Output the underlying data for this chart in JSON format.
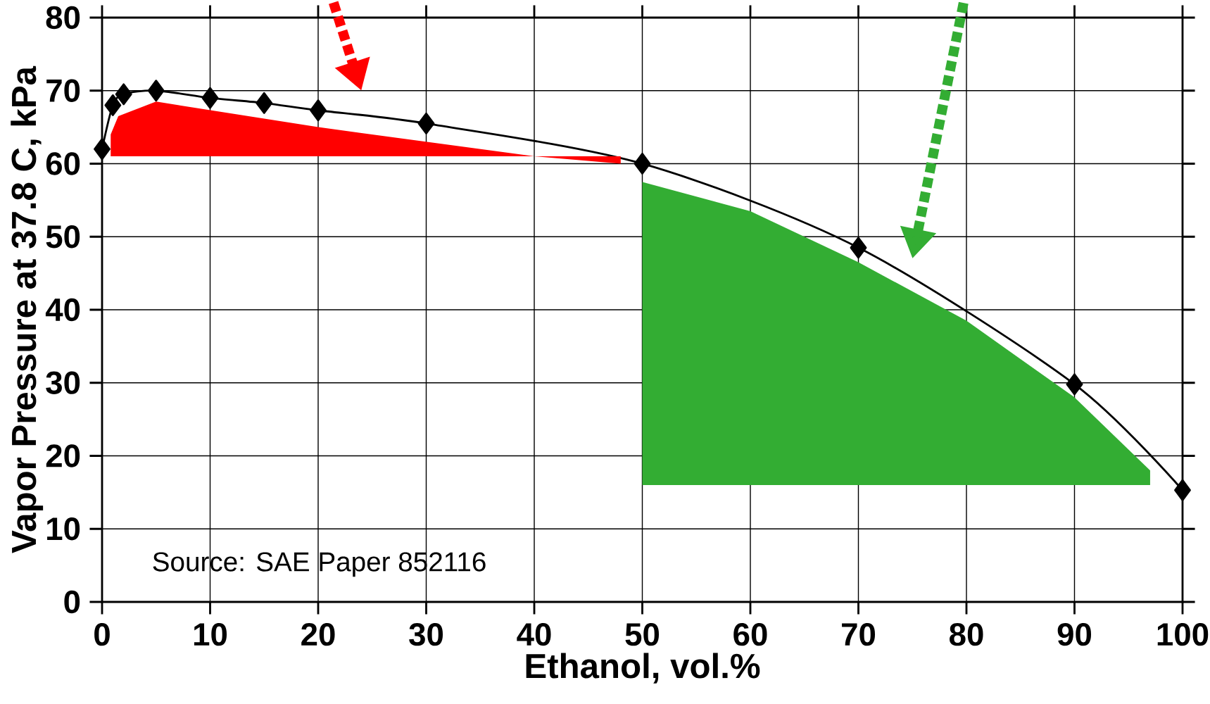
{
  "chart_data": {
    "type": "line",
    "xlabel": "Ethanol, vol.%",
    "ylabel": "Vapor Pressure at 37.8 C, kPa",
    "x": [
      0,
      1,
      2,
      5,
      10,
      15,
      20,
      30,
      50,
      70,
      90,
      100
    ],
    "series": [
      {
        "color": "#000000",
        "values": [
          62,
          68,
          69.5,
          70,
          69,
          68.3,
          67.3,
          65.5,
          60,
          48.5,
          29.8,
          15.3
        ]
      }
    ],
    "xlim": [
      0,
      100
    ],
    "xticks": [
      0,
      10,
      20,
      30,
      40,
      50,
      60,
      70,
      80,
      90,
      100
    ],
    "ylim": [
      0,
      80
    ],
    "yticks": [
      0,
      10,
      20,
      30,
      40,
      50,
      60,
      70,
      80
    ],
    "grid": true,
    "marker": "diamond",
    "line_style": "solid",
    "annotations": [
      "Source:  SAE Paper 852116"
    ]
  }
}
